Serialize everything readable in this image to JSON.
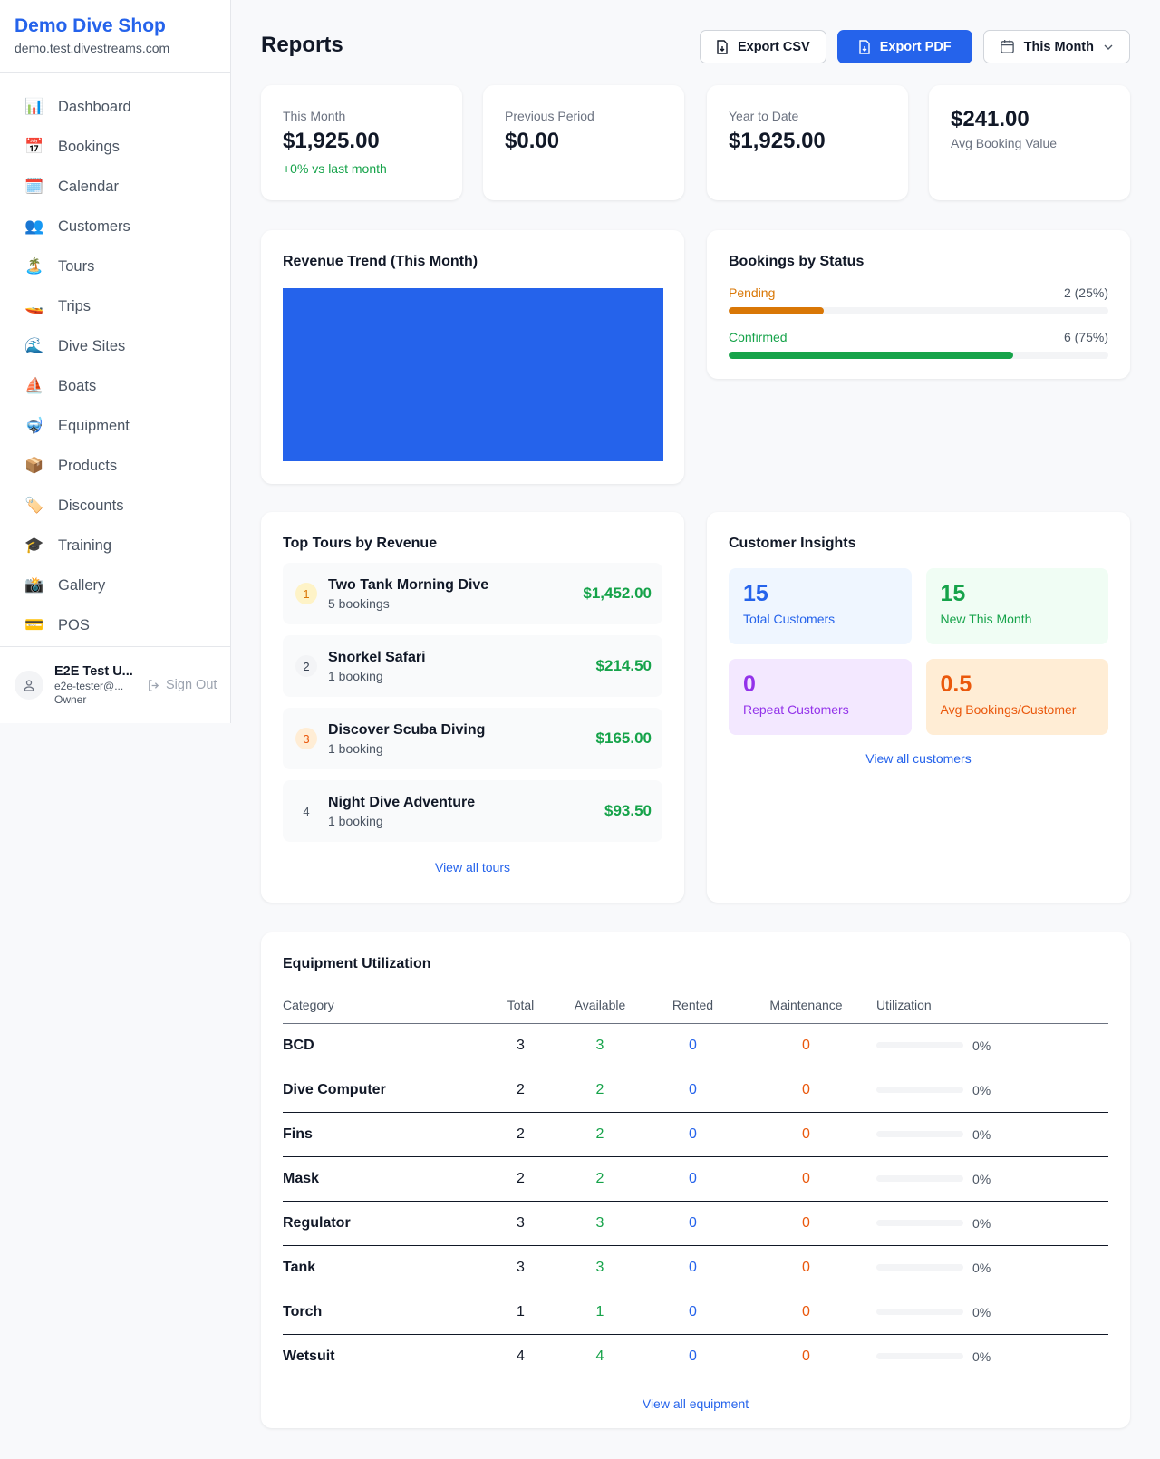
{
  "sidebar": {
    "shop_name": "Demo Dive Shop",
    "shop_url": "demo.test.divestreams.com",
    "items": [
      {
        "label": "Dashboard",
        "icon": "📊"
      },
      {
        "label": "Bookings",
        "icon": "📅"
      },
      {
        "label": "Calendar",
        "icon": "🗓️"
      },
      {
        "label": "Customers",
        "icon": "👥"
      },
      {
        "label": "Tours",
        "icon": "🏝️"
      },
      {
        "label": "Trips",
        "icon": "🚤"
      },
      {
        "label": "Dive Sites",
        "icon": "🌊"
      },
      {
        "label": "Boats",
        "icon": "⛵"
      },
      {
        "label": "Equipment",
        "icon": "🤿"
      },
      {
        "label": "Products",
        "icon": "📦"
      },
      {
        "label": "Discounts",
        "icon": "🏷️"
      },
      {
        "label": "Training",
        "icon": "🎓"
      },
      {
        "label": "Gallery",
        "icon": "📸"
      },
      {
        "label": "POS",
        "icon": "💳"
      }
    ],
    "user": {
      "name": "E2E Test U...",
      "email": "e2e-tester@...",
      "role": "Owner",
      "sign_out": "Sign Out"
    }
  },
  "header": {
    "title": "Reports",
    "export_csv": "Export CSV",
    "export_pdf": "Export PDF",
    "period": "This Month"
  },
  "stats": [
    {
      "label": "This Month",
      "value": "$1,925.00",
      "change": "+0% vs last month"
    },
    {
      "label": "Previous Period",
      "value": "$0.00"
    },
    {
      "label": "Year to Date",
      "value": "$1,925.00"
    },
    {
      "value": "$241.00",
      "label": "Avg Booking Value"
    }
  ],
  "revenue": {
    "title": "Revenue Trend (This Month)",
    "bar_color": "#2563eb"
  },
  "bookings_status": {
    "title": "Bookings by Status",
    "rows": [
      {
        "label": "Pending",
        "value": "2 (25%)",
        "percent": 25,
        "color": "#d97706"
      },
      {
        "label": "Confirmed",
        "value": "6 (75%)",
        "percent": 75,
        "color": "#16a34a"
      }
    ]
  },
  "top_tours": {
    "title": "Top Tours by Revenue",
    "link": "View all tours",
    "items": [
      {
        "rank": "1",
        "name": "Two Tank Morning Dive",
        "bookings": "5 bookings",
        "revenue": "$1,452.00"
      },
      {
        "rank": "2",
        "name": "Snorkel Safari",
        "bookings": "1 booking",
        "revenue": "$214.50"
      },
      {
        "rank": "3",
        "name": "Discover Scuba Diving",
        "bookings": "1 booking",
        "revenue": "$165.00"
      },
      {
        "rank": "4",
        "name": "Night Dive Adventure",
        "bookings": "1 booking",
        "revenue": "$93.50"
      }
    ]
  },
  "insights": {
    "title": "Customer Insights",
    "link": "View all customers",
    "items": [
      {
        "value": "15",
        "label": "Total Customers"
      },
      {
        "value": "15",
        "label": "New This Month"
      },
      {
        "value": "0",
        "label": "Repeat Customers"
      },
      {
        "value": "0.5",
        "label": "Avg Bookings/Customer"
      }
    ]
  },
  "equipment": {
    "title": "Equipment Utilization",
    "link": "View all equipment",
    "columns": [
      "Category",
      "Total",
      "Available",
      "Rented",
      "Maintenance",
      "Utilization"
    ],
    "rows": [
      {
        "category": "BCD",
        "total": "3",
        "available": "3",
        "rented": "0",
        "maintenance": "0",
        "utilization": "0%"
      },
      {
        "category": "Dive Computer",
        "total": "2",
        "available": "2",
        "rented": "0",
        "maintenance": "0",
        "utilization": "0%"
      },
      {
        "category": "Fins",
        "total": "2",
        "available": "2",
        "rented": "0",
        "maintenance": "0",
        "utilization": "0%"
      },
      {
        "category": "Mask",
        "total": "2",
        "available": "2",
        "rented": "0",
        "maintenance": "0",
        "utilization": "0%"
      },
      {
        "category": "Regulator",
        "total": "3",
        "available": "3",
        "rented": "0",
        "maintenance": "0",
        "utilization": "0%"
      },
      {
        "category": "Tank",
        "total": "3",
        "available": "3",
        "rented": "0",
        "maintenance": "0",
        "utilization": "0%"
      },
      {
        "category": "Torch",
        "total": "1",
        "available": "1",
        "rented": "0",
        "maintenance": "0",
        "utilization": "0%"
      },
      {
        "category": "Wetsuit",
        "total": "4",
        "available": "4",
        "rented": "0",
        "maintenance": "0",
        "utilization": "0%"
      }
    ]
  }
}
